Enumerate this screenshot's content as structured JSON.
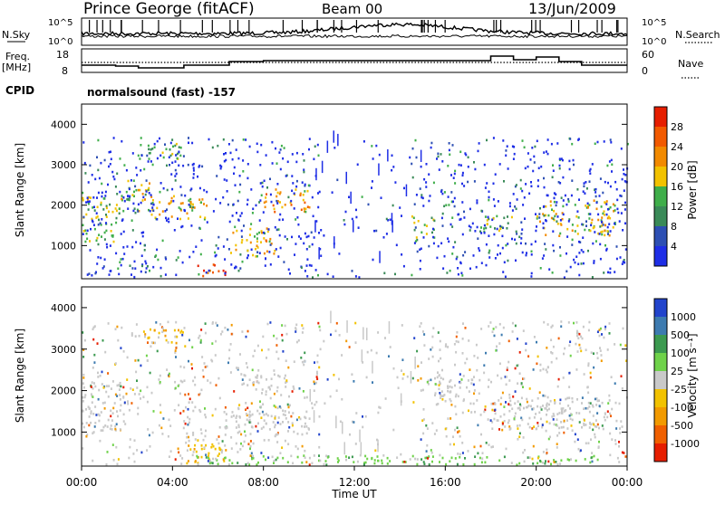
{
  "header": {
    "station": "Prince George (fitACF)",
    "beam": "Beam 00",
    "date": "13/Jun/2009"
  },
  "noise_panel": {
    "left_label": "N.Sky",
    "right_label": "N.Search",
    "tick_top": "10^5",
    "tick_bottom": "10^0"
  },
  "freq_panel": {
    "left_label_1": "Freq.",
    "left_label_2": "[MHz]",
    "right_label": "Nave",
    "left_ticks": [
      "18",
      "8"
    ],
    "right_ticks": [
      "60",
      "0"
    ]
  },
  "cpid": {
    "label": "CPID",
    "value": "normalsound (fast) -157"
  },
  "x_axis": {
    "label": "Time UT",
    "ticks": [
      "00:00",
      "04:00",
      "08:00",
      "12:00",
      "16:00",
      "20:00",
      "00:00"
    ]
  },
  "power_panel": {
    "ylabel": "Slant Range [km]",
    "yticks": [
      "1000",
      "2000",
      "3000",
      "4000"
    ],
    "colorbar_label": "Power [dB]",
    "colorbar_ticks": [
      "4",
      "8",
      "12",
      "16",
      "20",
      "24",
      "28"
    ],
    "colors": [
      "#1e2ee6",
      "#2d4fb3",
      "#3a8a58",
      "#3fae4a",
      "#f2c200",
      "#f28a00",
      "#f25a00",
      "#e61e00"
    ]
  },
  "velocity_panel": {
    "ylabel": "Slant Range [km]",
    "yticks": [
      "1000",
      "2000",
      "3000",
      "4000"
    ],
    "colorbar_label": "Velocity [m s⁻¹]",
    "colorbar_ticks": [
      "1000",
      "500",
      "100",
      "25",
      "-25",
      "-100",
      "-500",
      "-1000"
    ],
    "colors": [
      "#2244cc",
      "#3d7bb0",
      "#3c9a50",
      "#6fd24a",
      "#c9c9c9",
      "#f2c200",
      "#f29a00",
      "#f06000",
      "#e61e00"
    ]
  },
  "chart_data": [
    {
      "type": "heatmap",
      "title": "Power",
      "xlabel": "Time UT",
      "ylabel": "Slant Range [km]",
      "xlim": [
        "00:00",
        "24:00"
      ],
      "ylim": [
        180,
        4500
      ],
      "colorbar": {
        "label": "Power [dB]",
        "range": [
          0,
          30
        ]
      },
      "regions": [
        {
          "t": [
            0.0,
            1.5
          ],
          "r": [
            1000,
            2200
          ],
          "level": 14
        },
        {
          "t": [
            1.5,
            3.0
          ],
          "r": [
            1800,
            2600
          ],
          "level": 16
        },
        {
          "t": [
            2.5,
            4.5
          ],
          "r": [
            3100,
            3500
          ],
          "level": 12
        },
        {
          "t": [
            3.0,
            5.5
          ],
          "r": [
            1600,
            2200
          ],
          "level": 18
        },
        {
          "t": [
            5.0,
            6.5
          ],
          "r": [
            200,
            500
          ],
          "level": 26
        },
        {
          "t": [
            6.5,
            8.5
          ],
          "r": [
            700,
            1400
          ],
          "level": 18
        },
        {
          "t": [
            8.0,
            10.0
          ],
          "r": [
            1800,
            2400
          ],
          "level": 20
        },
        {
          "t": [
            14.5,
            15.5
          ],
          "r": [
            1100,
            1700
          ],
          "level": 12
        },
        {
          "t": [
            17.5,
            19.0
          ],
          "r": [
            1300,
            1800
          ],
          "level": 14
        },
        {
          "t": [
            20.0,
            23.5
          ],
          "r": [
            1200,
            2100
          ],
          "level": 16
        }
      ]
    },
    {
      "type": "heatmap",
      "title": "Velocity",
      "xlabel": "Time UT",
      "ylabel": "Slant Range [km]",
      "xlim": [
        "00:00",
        "24:00"
      ],
      "ylim": [
        180,
        4500
      ],
      "colorbar": {
        "label": "Velocity [m s⁻¹]",
        "range": [
          -1000,
          1000
        ]
      },
      "regions": [
        {
          "t": [
            0.0,
            2.0
          ],
          "r": [
            1000,
            2200
          ],
          "level": 0
        },
        {
          "t": [
            2.5,
            4.5
          ],
          "r": [
            3100,
            3500
          ],
          "level": -100
        },
        {
          "t": [
            4.5,
            6.5
          ],
          "r": [
            200,
            700
          ],
          "level": -200
        },
        {
          "t": [
            6.0,
            10.0
          ],
          "r": [
            900,
            1600
          ],
          "level": 0
        },
        {
          "t": [
            7.0,
            9.0
          ],
          "r": [
            1900,
            2400
          ],
          "level": 0
        },
        {
          "t": [
            15.5,
            17.5
          ],
          "r": [
            1600,
            2400
          ],
          "level": 0
        },
        {
          "t": [
            18.0,
            23.5
          ],
          "r": [
            1000,
            1800
          ],
          "level": 0
        },
        {
          "t": [
            5.0,
            23.0
          ],
          "r": [
            180,
            400
          ],
          "level": 80
        }
      ]
    }
  ]
}
